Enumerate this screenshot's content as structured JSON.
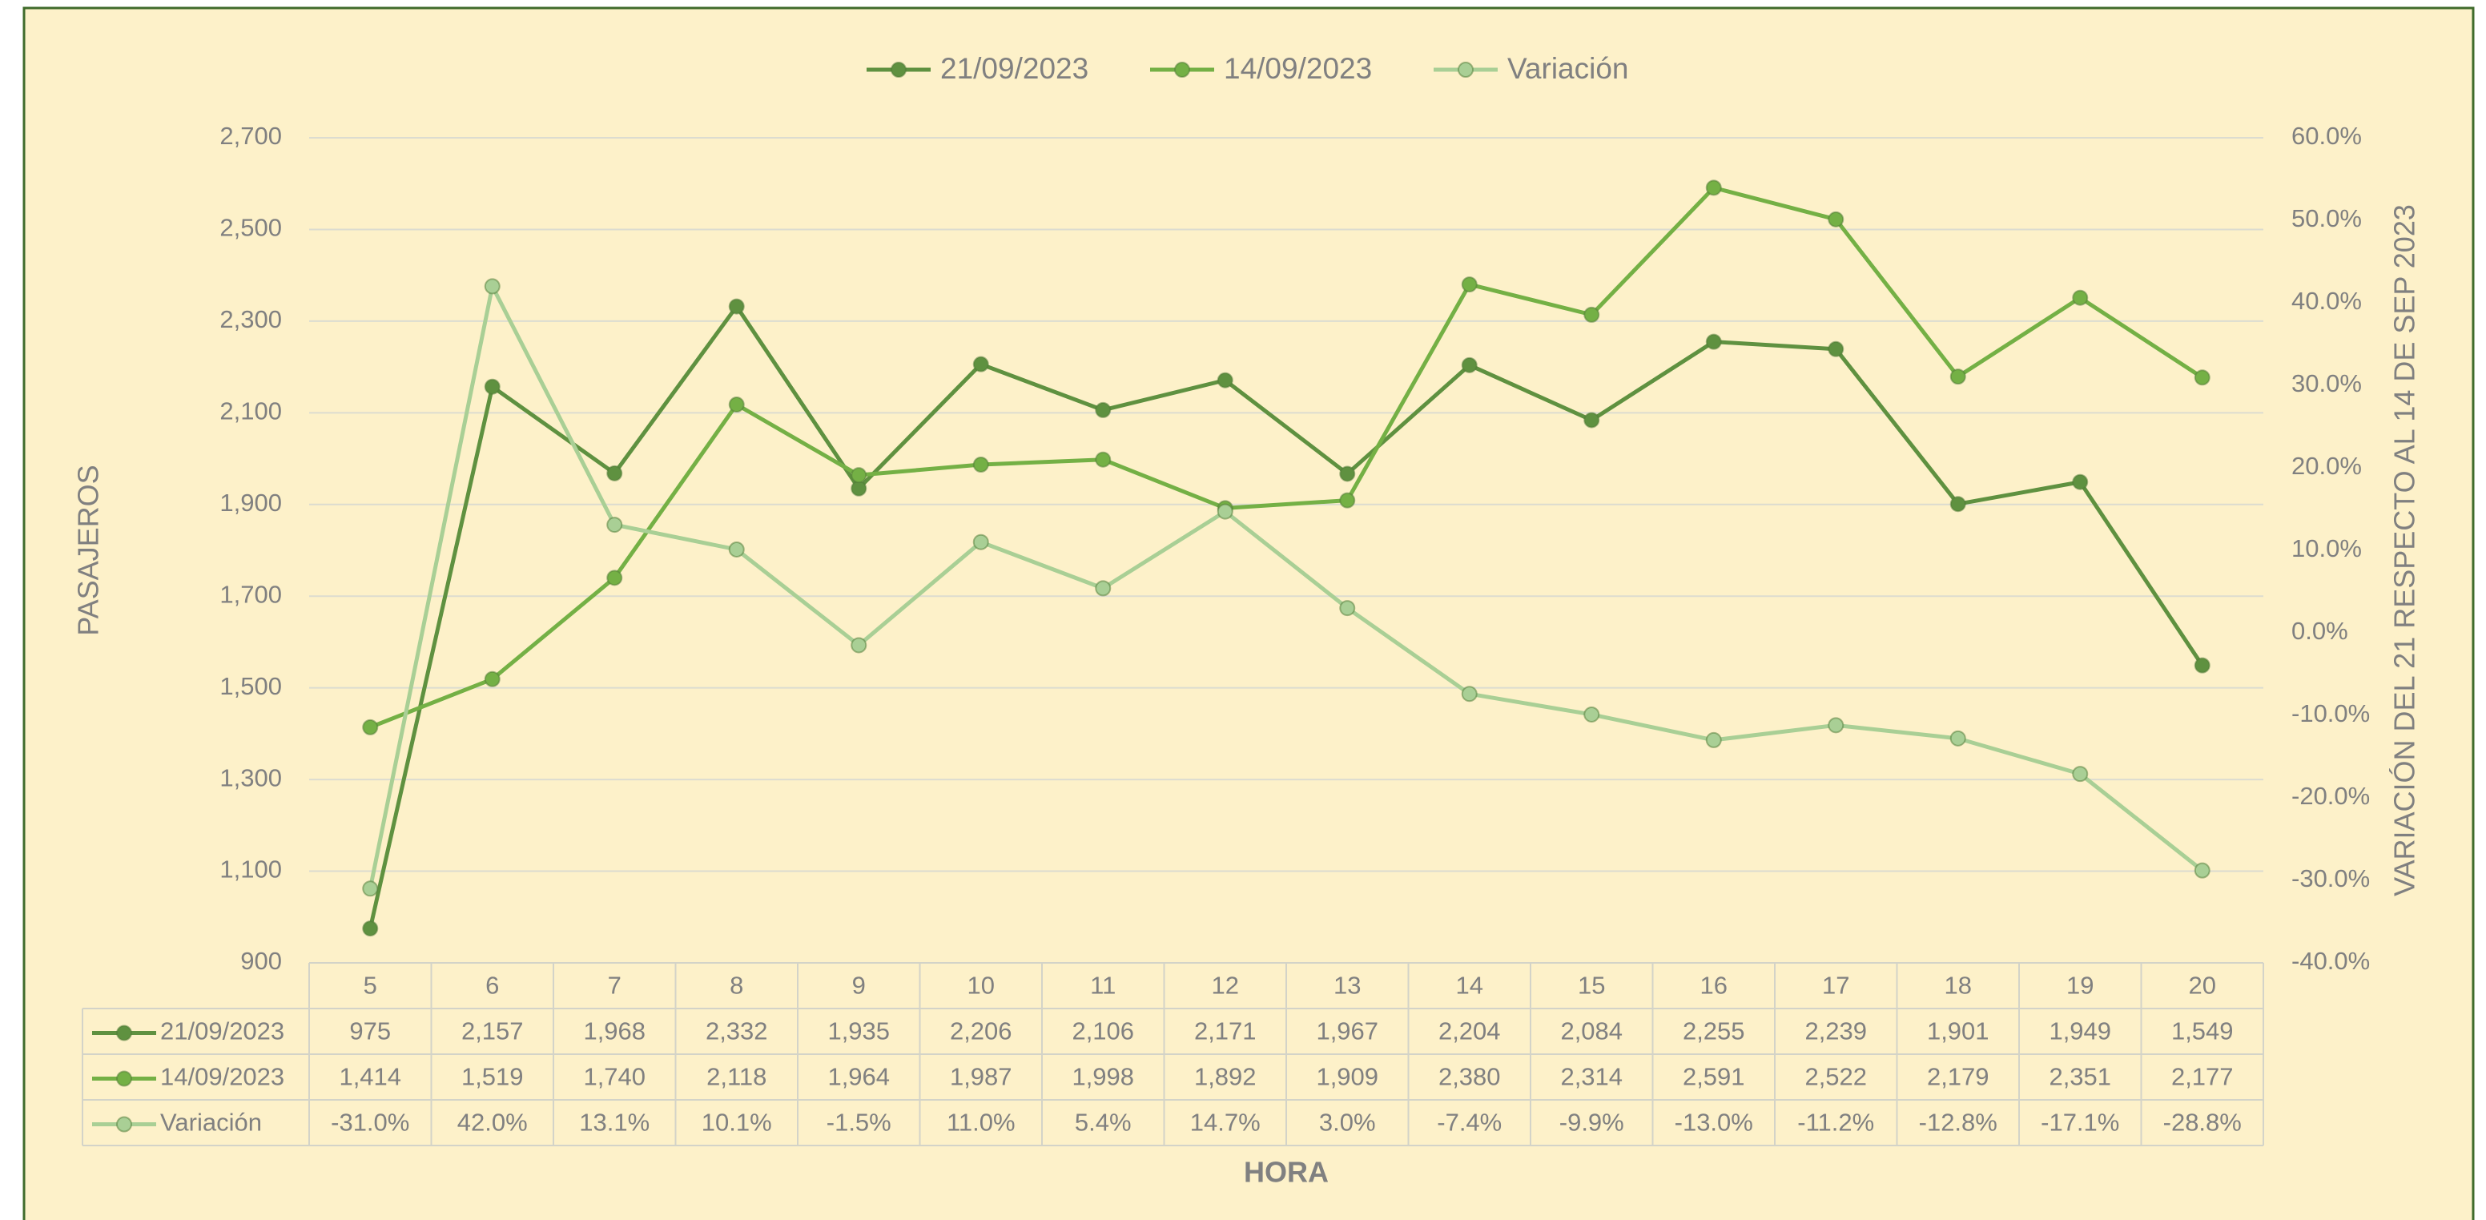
{
  "chart_data": {
    "type": "line",
    "categories": [
      5,
      6,
      7,
      8,
      9,
      10,
      11,
      12,
      13,
      14,
      15,
      16,
      17,
      18,
      19,
      20
    ],
    "series": [
      {
        "name": "21/09/2023",
        "color": "#5f9140",
        "values": [
          975,
          2157,
          1968,
          2332,
          1935,
          2206,
          2106,
          2171,
          1967,
          2204,
          2084,
          2255,
          2239,
          1901,
          1949,
          1549
        ],
        "value_labels": [
          "975",
          "2,157",
          "1,968",
          "2,332",
          "1,935",
          "2,206",
          "2,106",
          "2,171",
          "1,967",
          "2,204",
          "2,084",
          "2,255",
          "2,239",
          "1,901",
          "1,949",
          "1,549"
        ]
      },
      {
        "name": "14/09/2023",
        "color": "#74b045",
        "values": [
          1414,
          1519,
          1740,
          2118,
          1964,
          1987,
          1998,
          1892,
          1909,
          2380,
          2314,
          2591,
          2522,
          2179,
          2351,
          2177
        ],
        "value_labels": [
          "1,414",
          "1,519",
          "1,740",
          "2,118",
          "1,964",
          "1,987",
          "1,998",
          "1,892",
          "1,909",
          "2,380",
          "2,314",
          "2,591",
          "2,522",
          "2,179",
          "2,351",
          "2,177"
        ]
      },
      {
        "name": "Variación",
        "color": "#a9cf95",
        "axis": "y2",
        "values": [
          -31.0,
          42.0,
          13.1,
          10.1,
          -1.5,
          11.0,
          5.4,
          14.7,
          3.0,
          -7.4,
          -9.9,
          -13.0,
          -11.2,
          -12.8,
          -17.1,
          -28.8
        ],
        "value_labels": [
          "-31.0%",
          "42.0%",
          "13.1%",
          "10.1%",
          "-1.5%",
          "11.0%",
          "5.4%",
          "14.7%",
          "3.0%",
          "-7.4%",
          "-9.9%",
          "-13.0%",
          "-11.2%",
          "-12.8%",
          "-17.1%",
          "-28.8%"
        ]
      }
    ],
    "x_label": "HORA",
    "y_label": "PASAJEROS",
    "y2_label": "VARIACIÓN DEL 21 RESPECTO AL 14 DE SEP 2023",
    "ylim": [
      900,
      2700
    ],
    "yticks": [
      900,
      {
        "value": 1100,
        "label": "1,100"
      },
      {
        "value": 1300,
        "label": "1,300"
      },
      {
        "value": 1500,
        "label": "1,500"
      },
      {
        "value": 1700,
        "label": "1,700"
      },
      {
        "value": 1900,
        "label": "1,900"
      },
      {
        "value": 2100,
        "label": "2,100"
      },
      {
        "value": 2300,
        "label": "2,300"
      },
      {
        "value": 2500,
        "label": "2,500"
      },
      {
        "value": 2700,
        "label": "2,700"
      }
    ],
    "y2lim": [
      -40,
      60
    ],
    "y2ticks": [
      {
        "value": -40,
        "label": "-40.0%"
      },
      {
        "value": -30,
        "label": "-30.0%"
      },
      {
        "value": -20,
        "label": "-20.0%"
      },
      {
        "value": -10,
        "label": "-10.0%"
      },
      {
        "value": 0,
        "label": "0.0%"
      },
      {
        "value": 10,
        "label": "10.0%"
      },
      {
        "value": 20,
        "label": "20.0%"
      },
      {
        "value": 30,
        "label": "30.0%"
      },
      {
        "value": 40,
        "label": "40.0%"
      },
      {
        "value": 50,
        "label": "50.0%"
      },
      {
        "value": 60,
        "label": "60.0%"
      }
    ],
    "grid": true,
    "legend": "top"
  }
}
